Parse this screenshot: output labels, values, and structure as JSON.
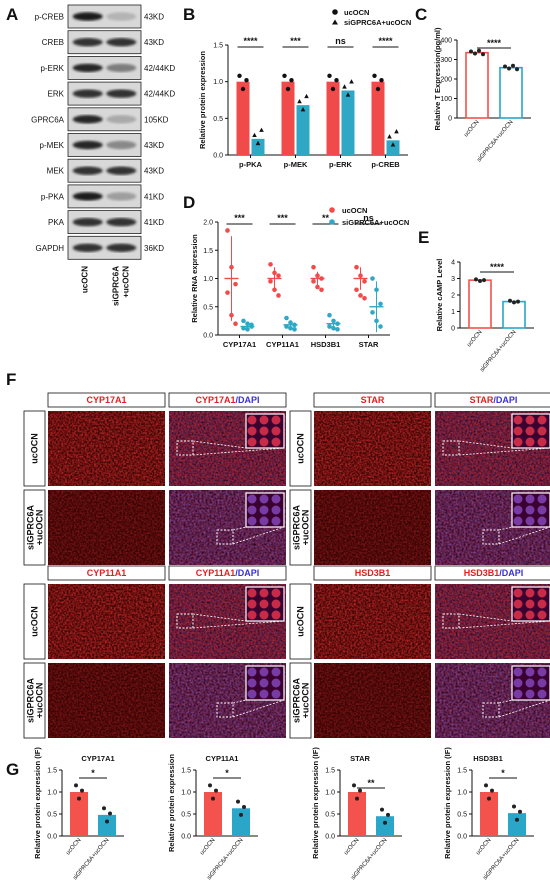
{
  "figure": {
    "panel_letters": [
      "A",
      "B",
      "C",
      "D",
      "E",
      "F",
      "G"
    ],
    "colors": {
      "control_red": "#f04a4a",
      "treat_cyan": "#2ea8c4",
      "ctrl_bar": "#f4524d",
      "treat_bar": "#2aa6c9",
      "red_stain": "#cc1a1a",
      "dapi_blue": "#3a2fd8"
    }
  },
  "panel_a": {
    "proteins": [
      "p-CREB",
      "CREB",
      "p-ERK",
      "ERK",
      "GPRC6A",
      "p-MEK",
      "MEK",
      "p-PKA",
      "PKA",
      "GAPDH"
    ],
    "sizes": [
      "43KD",
      "43KD",
      "42/44KD",
      "42/44KD",
      "105KD",
      "43KD",
      "43KD",
      "41KD",
      "41KD",
      "36KD"
    ],
    "lane_labels": [
      "ucOCN",
      "siGPRC6A\n+ucOCN"
    ],
    "lane_label_1": "ucOCN",
    "lane_label_2a": "siGPRC6A",
    "lane_label_2b": "+ucOCN",
    "band_intensity_lane1": [
      0.95,
      0.85,
      0.9,
      0.85,
      0.9,
      0.9,
      0.85,
      0.95,
      0.85,
      0.85
    ],
    "band_intensity_lane2": [
      0.25,
      0.85,
      0.5,
      0.85,
      0.3,
      0.45,
      0.85,
      0.35,
      0.85,
      0.85
    ]
  },
  "chart_data": [
    {
      "panel": "B",
      "type": "bar",
      "categories": [
        "p-PKA",
        "p-MEK",
        "p-ERK",
        "p-CREB"
      ],
      "series": [
        {
          "name": "ucOCN",
          "values": [
            1.0,
            1.0,
            1.0,
            1.0
          ]
        },
        {
          "name": "siGPRC6A+ucOCN",
          "values": [
            0.22,
            0.68,
            0.88,
            0.2
          ]
        }
      ],
      "significance": [
        "****",
        "***",
        "ns",
        "****"
      ],
      "ylabel": "Relative protein expression",
      "yticks": [
        "0.0",
        "0.5",
        "1.0",
        "1.5"
      ],
      "ylim": [
        0,
        1.5
      ],
      "legend": "top-right"
    },
    {
      "panel": "C",
      "type": "bar",
      "categories": [
        "ucOCN",
        "siGPRC6A+ucOCN"
      ],
      "values": [
        335,
        258
      ],
      "significance": "****",
      "ylabel": "Relative T Expression(pg/ml)",
      "yticks": [
        "0",
        "100",
        "200",
        "300",
        "400"
      ],
      "ylim": [
        0,
        400
      ]
    },
    {
      "panel": "D",
      "type": "scatter",
      "categories": [
        "CYP17A1",
        "CYP11A1",
        "HSD3B1",
        "STAR"
      ],
      "series": [
        {
          "name": "ucOCN",
          "values": [
            1.0,
            1.0,
            1.0,
            1.0
          ]
        },
        {
          "name": "siGPRC6A+ucOCN",
          "values": [
            0.15,
            0.18,
            0.2,
            0.5
          ]
        }
      ],
      "significance": [
        "***",
        "***",
        "**",
        "ns"
      ],
      "ylabel": "Relative RNA expression",
      "yticks": [
        "0.0",
        "0.5",
        "1.0",
        "1.5",
        "2.0"
      ],
      "ylim": [
        0,
        2.0
      ],
      "legend": "top-right"
    },
    {
      "panel": "E",
      "type": "bar",
      "categories": [
        "ucOCN",
        "siGPRC6A+ucOCN"
      ],
      "values": [
        2.9,
        1.6
      ],
      "significance": "****",
      "ylabel": "Relative cAMP Level",
      "yticks": [
        "0",
        "1",
        "2",
        "3",
        "4"
      ],
      "ylim": [
        0,
        4
      ]
    },
    {
      "panel": "G",
      "type": "bar",
      "title": "CYP17A1",
      "categories": [
        "ucOCN",
        "siGPRC6A+ucOCN"
      ],
      "values": [
        1.0,
        0.48
      ],
      "significance": "*",
      "ylabel": "Relative protein expression (IF)",
      "yticks": [
        "0.0",
        "0.5",
        "1.0",
        "1.5"
      ],
      "ylim": [
        0,
        1.5
      ]
    },
    {
      "panel": "G",
      "type": "bar",
      "title": "CYP11A1",
      "categories": [
        "ucOCN",
        "siGPRC6A+ucOCN"
      ],
      "values": [
        1.0,
        0.63
      ],
      "significance": "*",
      "ylabel": "Relative protein expression",
      "yticks": [
        "0.0",
        "0.5",
        "1.0",
        "1.5"
      ],
      "ylim": [
        0,
        1.5
      ]
    },
    {
      "panel": "G",
      "type": "bar",
      "title": "STAR",
      "categories": [
        "ucOCN",
        "siGPRC6A+ucOCN"
      ],
      "values": [
        1.0,
        0.45
      ],
      "significance": "**",
      "ylabel": "Relative protein expression (IF)",
      "yticks": [
        "0.0",
        "0.5",
        "1.0",
        "1.5"
      ],
      "ylim": [
        0,
        1.5
      ]
    },
    {
      "panel": "G",
      "type": "bar",
      "title": "HSD3B1",
      "categories": [
        "ucOCN",
        "siGPRC6A+ucOCN"
      ],
      "values": [
        1.0,
        0.52
      ],
      "significance": "*",
      "ylabel": "Relative protein expression (IF)",
      "yticks": [
        "0.0",
        "0.5",
        "1.0",
        "1.5"
      ],
      "ylim": [
        0,
        1.5
      ]
    }
  ],
  "panel_f": {
    "blocks": [
      {
        "marker": "CYP17A1",
        "dapi_suffix": "/DAPI",
        "rows": [
          "ucOCN",
          "siGPRC6A\n+ucOCN"
        ]
      },
      {
        "marker": "STAR",
        "dapi_suffix": "/DAPI",
        "rows": [
          "ucOCN",
          "siGPRC6A\n+ucOCN"
        ]
      },
      {
        "marker": "CYP11A1",
        "dapi_suffix": "/DAPI",
        "rows": [
          "ucOCN",
          "siGPRC6A\n+ucOCN"
        ]
      },
      {
        "marker": "HSD3B1",
        "dapi_suffix": "/DAPI",
        "rows": [
          "ucOCN",
          "siGPRC6A\n+ucOCN"
        ]
      }
    ],
    "row_ctrl": "ucOCN",
    "row_treat_a": "siGPRC6A",
    "row_treat_b": "+ucOCN",
    "dapi_text": "/DAPI",
    "marker_1": "CYP17A1",
    "marker_2": "STAR",
    "marker_3": "CYP11A1",
    "marker_4": "HSD3B1"
  }
}
